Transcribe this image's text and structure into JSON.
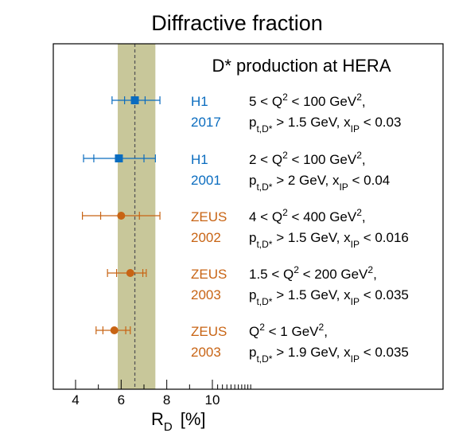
{
  "chart_data": {
    "type": "scatter",
    "title": "Diffractive fraction",
    "subtitle": "D* production at HERA",
    "xlabel_main": "R",
    "xlabel_sub": "D",
    "xlabel_unit": "[%]",
    "xlim": [
      3,
      20
    ],
    "xticks": [
      4,
      6,
      8,
      10
    ],
    "xticklabels": [
      "4",
      "6",
      "8",
      "10"
    ],
    "band": {
      "low": 5.85,
      "high": 7.5,
      "center": 6.6,
      "color": "#c8c79a",
      "line_color": "#555555"
    },
    "colors": {
      "H1": "#0a6cbf",
      "ZEUS": "#c86414"
    },
    "points": [
      {
        "experiment": "H1",
        "year": "2017",
        "marker": "square",
        "value": 6.6,
        "stat": [
          6.15,
          7.05
        ],
        "total": [
          5.6,
          7.7
        ],
        "range": [
          "5 < Q",
          "2",
          " < 100 GeV",
          "2",
          ","
        ],
        "cuts": [
          "p",
          "t,D*",
          " > 1.5 GeV, x",
          "IP",
          " < 0.03"
        ]
      },
      {
        "experiment": "H1",
        "year": "2001",
        "marker": "square",
        "value": 5.9,
        "stat": [
          4.8,
          7.0
        ],
        "total": [
          4.35,
          7.5
        ],
        "range": [
          "2 < Q",
          "2",
          " < 100 GeV",
          "2",
          ","
        ],
        "cuts": [
          "p",
          "t,D*",
          " > 2 GeV, x",
          "IP",
          " < 0.04"
        ]
      },
      {
        "experiment": "ZEUS",
        "year": "2002",
        "marker": "circle",
        "value": 6.0,
        "stat": [
          5.1,
          6.8
        ],
        "total": [
          4.3,
          7.7
        ],
        "range": [
          "4 < Q",
          "2",
          " < 400 GeV",
          "2",
          ","
        ],
        "cuts": [
          "p",
          "t,D*",
          " > 1.5 GeV, x",
          "IP",
          " < 0.016"
        ]
      },
      {
        "experiment": "ZEUS",
        "year": "2003",
        "marker": "circle",
        "value": 6.4,
        "stat": [
          5.8,
          6.95
        ],
        "total": [
          5.4,
          7.1
        ],
        "range": [
          "1.5  < Q",
          "2",
          " < 200 GeV",
          "2",
          ","
        ],
        "cuts": [
          "p",
          "t,D*",
          " > 1.5 GeV, x",
          "IP",
          " < 0.035"
        ]
      },
      {
        "experiment": "ZEUS",
        "year": "2003",
        "marker": "circle",
        "value": 5.7,
        "stat": [
          5.2,
          6.2
        ],
        "total": [
          4.9,
          6.4
        ],
        "range": [
          "Q",
          "2",
          " < 1 GeV",
          "2",
          ","
        ],
        "cuts": [
          "p",
          "t,D*",
          " > 1.9 GeV, x",
          "IP",
          " < 0.035"
        ]
      }
    ]
  }
}
